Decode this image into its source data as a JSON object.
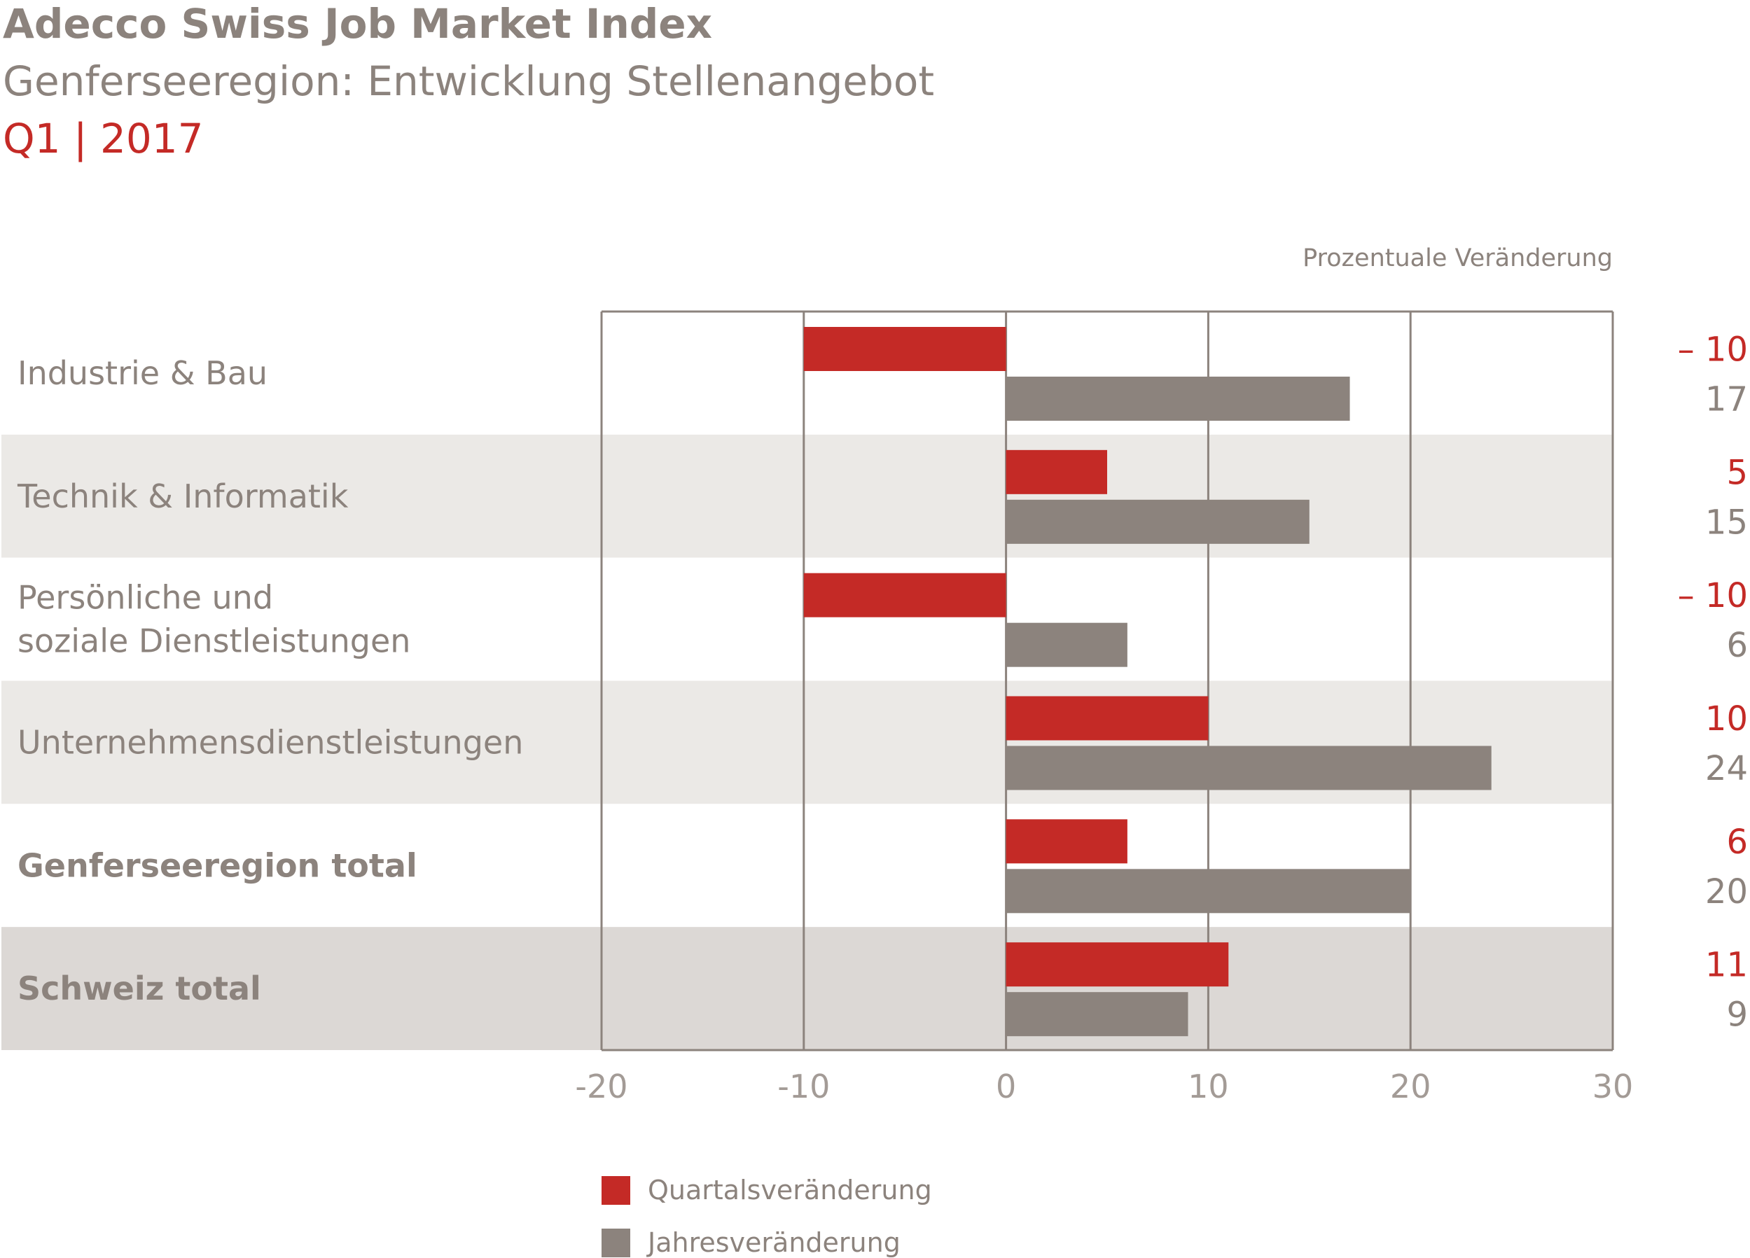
{
  "header": {
    "title": "Adecco Swiss Job Market Index",
    "subtitle": "Genferseeregion: Entwicklung Stellenangebot",
    "period": "Q1 | 2017"
  },
  "chart_data": {
    "type": "bar",
    "orientation": "horizontal",
    "unit_label": "Prozentuale Veränderung",
    "categories": [
      "Industrie & Bau",
      "Technik & Informatik",
      "Persönliche und\nsoziale Dienstleistungen",
      "Unternehmensdienstleistungen",
      "Genferseeregion total",
      "Schweiz total"
    ],
    "bold_categories": [
      "Genferseeregion total",
      "Schweiz total"
    ],
    "series": [
      {
        "name": "Quartalsveränderung",
        "color": "#c42a26",
        "values": [
          -10,
          5,
          -10,
          10,
          6,
          11
        ],
        "labels": [
          "– 10",
          "5",
          "– 10",
          "10",
          "6",
          "11"
        ]
      },
      {
        "name": "Jahresveränderung",
        "color": "#8c837d",
        "values": [
          17,
          15,
          6,
          24,
          20,
          9
        ],
        "labels": [
          "17",
          "15",
          "6",
          "24",
          "20",
          "9"
        ]
      }
    ],
    "xlim": [
      -20,
      30
    ],
    "xticks": [
      -20,
      -10,
      0,
      10,
      20,
      30
    ],
    "xtick_labels": [
      "-20",
      "-10",
      "0",
      "10",
      "20",
      "30"
    ],
    "row_backgrounds": [
      "#ffffff",
      "#ebe9e6",
      "#ffffff",
      "#ebe9e6",
      "#ffffff",
      "#dcd8d5"
    ],
    "grid": true,
    "legend": "bottom-left"
  }
}
